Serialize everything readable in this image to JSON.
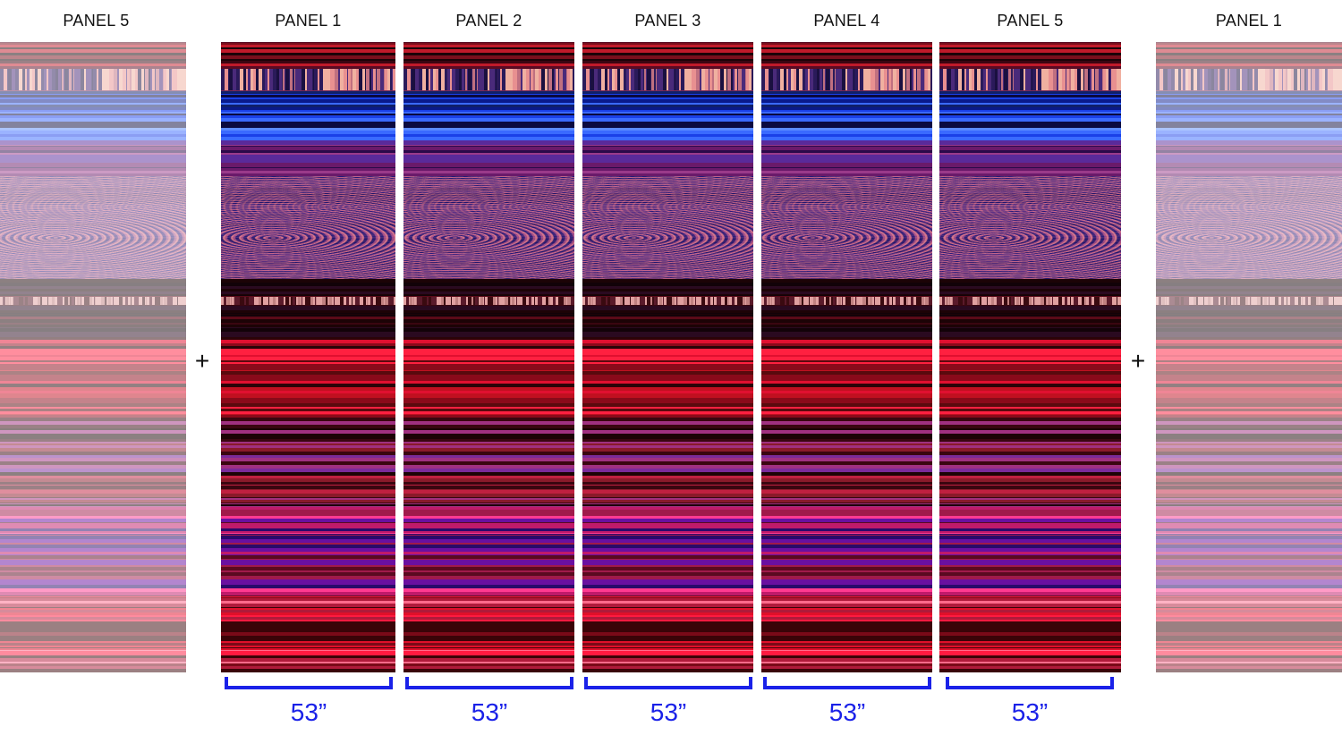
{
  "panel_labels": {
    "left_repeat": "PANEL 5",
    "p1": "PANEL 1",
    "p2": "PANEL 2",
    "p3": "PANEL 3",
    "p4": "PANEL 4",
    "p5": "PANEL 5",
    "right_repeat": "PANEL 1"
  },
  "plus_sign": "+",
  "panel_width": "53”",
  "colors": {
    "measure_blue": "#1a21e8",
    "background": "#ffffff",
    "panel_base": "#2a0410"
  }
}
